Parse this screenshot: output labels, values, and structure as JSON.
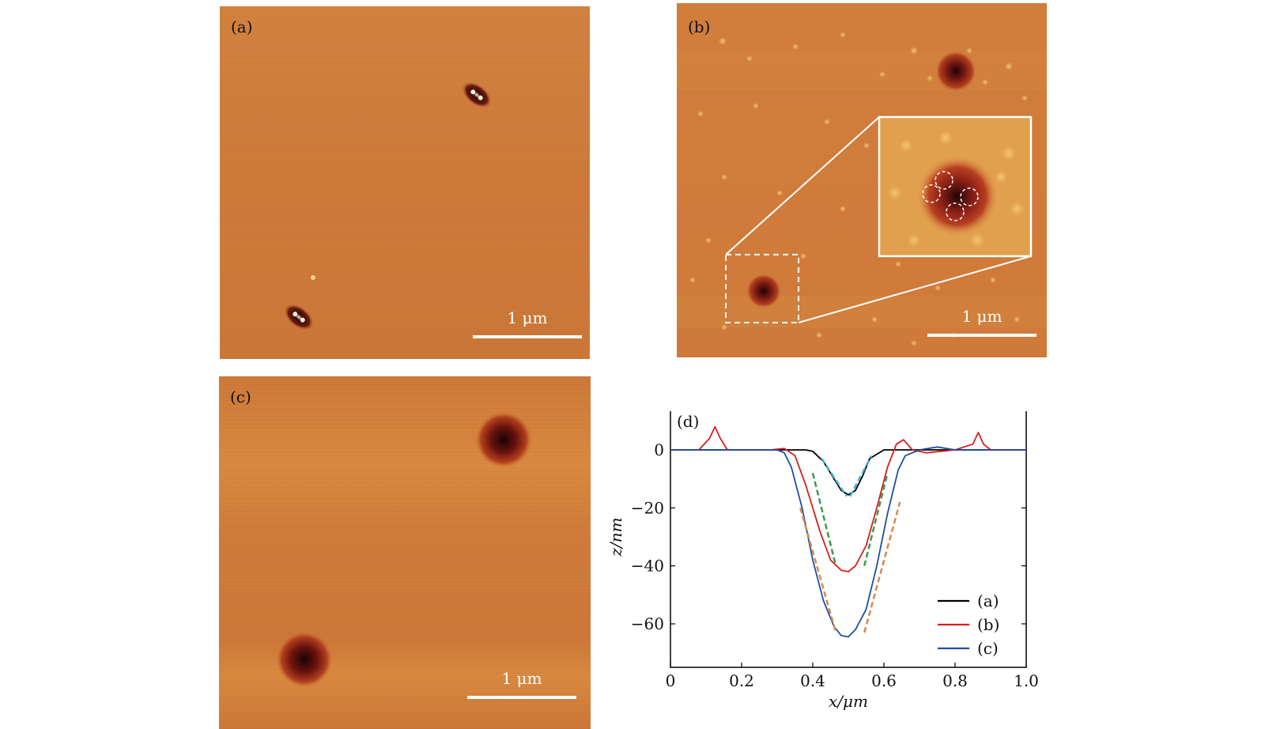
{
  "panels": {
    "a": {
      "label": "(a)",
      "scale_text": "1 μm"
    },
    "b": {
      "label": "(b)",
      "scale_text": "1 μm"
    },
    "c": {
      "label": "(c)",
      "scale_text": "1 μm"
    },
    "d": {
      "label": "(d)"
    }
  },
  "colors": {
    "surface": "#cf7a3a",
    "surface_light": "#de9450",
    "pit_dark": "#3a0a08",
    "pit_red": "#9a2a1a",
    "series_a": "#000000",
    "series_b": "#d81e1e",
    "series_c": "#1f4fa0",
    "fit_cyan": "#3cb4d8",
    "fit_green": "#3a9a4a",
    "fit_orange": "#d8894a"
  },
  "chart_data": {
    "type": "line",
    "title": "(d)",
    "xlabel": "x/μm",
    "ylabel": "z/nm",
    "xlim": [
      0,
      1.0
    ],
    "ylim": [
      -75,
      15
    ],
    "xticks": [
      0,
      0.2,
      0.4,
      0.6,
      0.8,
      1.0
    ],
    "xtick_labels": [
      "0",
      "0.2",
      "0.4",
      "0.6",
      "0.8",
      "1.0"
    ],
    "yticks": [
      0,
      -20,
      -40,
      -60
    ],
    "ytick_labels": [
      "0",
      "−20",
      "−40",
      "−60"
    ],
    "legend": {
      "position": "bottom-right",
      "entries": [
        "(a)",
        "(b)",
        "(c)"
      ]
    },
    "series": [
      {
        "name": "(a)",
        "color": "#000000",
        "x": [
          0,
          0.2,
          0.38,
          0.4,
          0.43,
          0.46,
          0.48,
          0.5,
          0.52,
          0.54,
          0.56,
          0.6,
          0.8,
          1.0
        ],
        "y": [
          0,
          0,
          0,
          -0.5,
          -4,
          -10,
          -14,
          -15.5,
          -14,
          -9,
          -3,
          0,
          0,
          0
        ]
      },
      {
        "name": "(b)",
        "color": "#d81e1e",
        "x": [
          0,
          0.08,
          0.11,
          0.125,
          0.14,
          0.16,
          0.2,
          0.28,
          0.32,
          0.35,
          0.38,
          0.42,
          0.45,
          0.48,
          0.5,
          0.52,
          0.55,
          0.58,
          0.61,
          0.635,
          0.655,
          0.68,
          0.72,
          0.8,
          0.85,
          0.865,
          0.88,
          0.9,
          1.0
        ],
        "y": [
          0,
          0,
          4,
          8,
          4,
          0,
          0,
          0,
          0.5,
          -2,
          -12,
          -28,
          -38,
          -41.5,
          -42,
          -40,
          -33,
          -20,
          -6,
          2,
          3.5,
          0,
          -1,
          0,
          2,
          6,
          2,
          0,
          0
        ]
      },
      {
        "name": "(c)",
        "color": "#1f4fa0",
        "x": [
          0,
          0.2,
          0.3,
          0.32,
          0.34,
          0.37,
          0.4,
          0.43,
          0.46,
          0.48,
          0.5,
          0.52,
          0.55,
          0.58,
          0.61,
          0.64,
          0.66,
          0.7,
          0.75,
          0.8,
          1.0
        ],
        "y": [
          0,
          0,
          0,
          -1,
          -6,
          -20,
          -38,
          -52,
          -61,
          -64,
          -64.5,
          -62,
          -55,
          -40,
          -22,
          -7,
          -2,
          0,
          1,
          0,
          0
        ]
      }
    ],
    "fit_lines": [
      {
        "color": "#3cb4d8",
        "x": [
          0.425,
          0.495
        ],
        "y": [
          -3,
          -16
        ]
      },
      {
        "color": "#3cb4d8",
        "x": [
          0.505,
          0.565
        ],
        "y": [
          -16,
          -2
        ]
      },
      {
        "color": "#3a9a4a",
        "x": [
          0.4,
          0.465
        ],
        "y": [
          -8,
          -40
        ]
      },
      {
        "color": "#3a9a4a",
        "x": [
          0.545,
          0.61
        ],
        "y": [
          -40,
          -8
        ]
      },
      {
        "color": "#d8894a",
        "x": [
          0.365,
          0.465
        ],
        "y": [
          -20,
          -63
        ]
      },
      {
        "color": "#d8894a",
        "x": [
          0.545,
          0.645
        ],
        "y": [
          -63,
          -18
        ]
      }
    ]
  }
}
